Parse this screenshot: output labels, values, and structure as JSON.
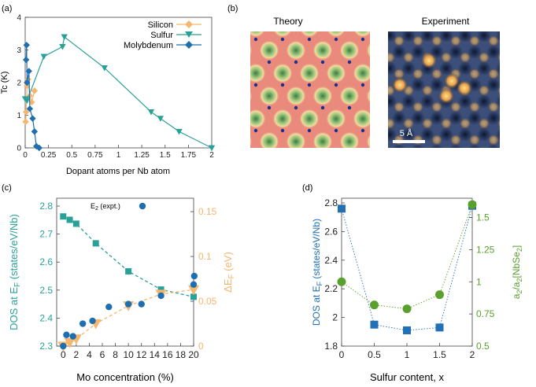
{
  "colors": {
    "silicon": "#f5b66e",
    "sulfur": "#2aa198",
    "molybdenum": "#1f6fb0",
    "mo_dos": "#2aa198",
    "mo_ef": "#f5b66e",
    "mo_e2": "#1f6fb0",
    "s_dos": "#2270b5",
    "s_ratio": "#5aa02c"
  },
  "panels": {
    "a": {
      "label": "(a)"
    },
    "b": {
      "label": "(b)",
      "theory_title": "Theory",
      "experiment_title": "Experiment",
      "scalebar_label": "5 Å"
    },
    "c": {
      "label": "(c)",
      "legend_label": "E2 (expt.)"
    },
    "d": {
      "label": "(d)"
    }
  },
  "chart_data": [
    {
      "id": "a",
      "type": "line",
      "title": "",
      "xlabel": "Dopant atoms per Nb atom",
      "ylabel": "Tc (K)",
      "xlim": [
        0,
        2
      ],
      "ylim": [
        0,
        4
      ],
      "xticks": [
        0,
        0.25,
        0.5,
        0.75,
        1,
        1.25,
        1.5,
        1.75,
        2
      ],
      "xtick_labels": [
        "0",
        "0.25",
        "0.5",
        "0.75",
        "1",
        "1.25",
        "1.5",
        "1.75",
        "2"
      ],
      "yticks": [
        0,
        1,
        2,
        3,
        4
      ],
      "ytick_labels": [
        "0",
        "1",
        "2",
        "3",
        "4"
      ],
      "legend": "top-right",
      "series": [
        {
          "name": "Silicon",
          "marker": "diamond",
          "x": [
            0.005,
            0.01,
            0.02,
            0.03,
            0.05,
            0.07,
            0.1
          ],
          "y": [
            0.8,
            1.1,
            1.9,
            2.1,
            1.6,
            1.4,
            1.75
          ]
        },
        {
          "name": "Sulfur",
          "marker": "triangle-down",
          "x": [
            0,
            0.02,
            0.2,
            0.4,
            0.42,
            0.85,
            1.35,
            1.45,
            1.65,
            2.0
          ],
          "y": [
            1.5,
            1.45,
            2.8,
            3.1,
            3.4,
            2.45,
            1.1,
            0.9,
            0.5,
            0
          ],
          "order": "x"
        },
        {
          "name": "Molybdenum",
          "marker": "diamond",
          "x": [
            0.01,
            0.015,
            0.02,
            0.04,
            0.05,
            0.08,
            0.1,
            0.12,
            0.15
          ],
          "y": [
            2.7,
            3.15,
            2.0,
            2.35,
            1.2,
            0.9,
            0.5,
            0.05,
            0.0
          ]
        }
      ]
    },
    {
      "id": "c",
      "type": "scatter",
      "xlabel": "Mo concentration (%)",
      "ylabel_left": "DOS at EF (states/eV/Nb)",
      "ylabel_right": "ΔEF (eV)",
      "xlim": [
        -1,
        20
      ],
      "ylim_left": [
        2.3,
        2.8
      ],
      "ylim_right": [
        0,
        0.165
      ],
      "xticks": [
        0,
        2,
        4,
        6,
        8,
        10,
        12,
        14,
        16,
        18,
        20
      ],
      "xtick_labels": [
        "0",
        "2",
        "4",
        "6",
        "8",
        "10",
        "12",
        "14",
        "16",
        "18",
        "20"
      ],
      "yticks_left": [
        2.3,
        2.4,
        2.5,
        2.6,
        2.7,
        2.8
      ],
      "ytick_labels_left": [
        "2.3",
        "2.4",
        "2.5",
        "2.6",
        "2.7",
        "2.8"
      ],
      "yticks_right": [
        0,
        0.05,
        0.1,
        0.15
      ],
      "ytick_labels_right": [
        "0",
        "0.05",
        "0.1",
        "0.15"
      ],
      "series": [
        {
          "name": "DOS at EF",
          "axis": "left",
          "marker": "square",
          "style": "dashed",
          "x": [
            0,
            1,
            2,
            5,
            10,
            15,
            20
          ],
          "y": [
            2.763,
            2.751,
            2.737,
            2.667,
            2.567,
            2.502,
            2.476
          ]
        },
        {
          "name": "ΔEF",
          "axis": "right",
          "marker": "triangle-down",
          "style": "dashed",
          "x": [
            0,
            1,
            2,
            5,
            10,
            15,
            20
          ],
          "y": [
            0.0,
            0.004,
            0.008,
            0.025,
            0.045,
            0.058,
            0.063
          ]
        },
        {
          "name": "E2 (expt.)",
          "axis": "left",
          "marker": "circle",
          "style": "none",
          "x": [
            0,
            0.5,
            1.5,
            3,
            4.5,
            7,
            10,
            12,
            15,
            20,
            20.1
          ],
          "y": [
            2.3,
            2.34,
            2.335,
            2.38,
            2.39,
            2.44,
            2.45,
            2.45,
            2.48,
            2.52,
            2.55
          ]
        }
      ]
    },
    {
      "id": "d",
      "type": "scatter",
      "xlabel": "Sulfur content, x",
      "ylabel_left": "DOS at EF (states/eV/Nb)",
      "ylabel_right": "a2/a2[NbSe2]",
      "xlim": [
        0,
        2
      ],
      "ylim_left": [
        1.8,
        2.8
      ],
      "ylim_right": [
        0.5,
        1.65
      ],
      "xticks": [
        0,
        0.5,
        1,
        1.5,
        2
      ],
      "xtick_labels": [
        "0",
        "0.5",
        "1",
        "1.5",
        "2"
      ],
      "yticks_left": [
        1.8,
        2.0,
        2.2,
        2.4,
        2.6,
        2.8
      ],
      "ytick_labels_left": [
        "1.8",
        "2",
        "2.2",
        "2.4",
        "2.6",
        "2.8"
      ],
      "yticks_right": [
        0.5,
        0.75,
        1,
        1.25,
        1.5
      ],
      "ytick_labels_right": [
        "0.5",
        "0.75",
        "1",
        "1.25",
        "1.5"
      ],
      "series": [
        {
          "name": "DOS at EF",
          "axis": "left",
          "marker": "square",
          "style": "dotted",
          "x": [
            0,
            0.5,
            1,
            1.5,
            2
          ],
          "y": [
            2.76,
            1.95,
            1.91,
            1.93,
            2.78
          ]
        },
        {
          "name": "a2/a2[NbSe2]",
          "axis": "right",
          "marker": "circle",
          "style": "dotted",
          "x": [
            0,
            0.5,
            1,
            1.5,
            2
          ],
          "y": [
            1.0,
            0.82,
            0.79,
            0.9,
            1.6
          ]
        }
      ]
    }
  ]
}
